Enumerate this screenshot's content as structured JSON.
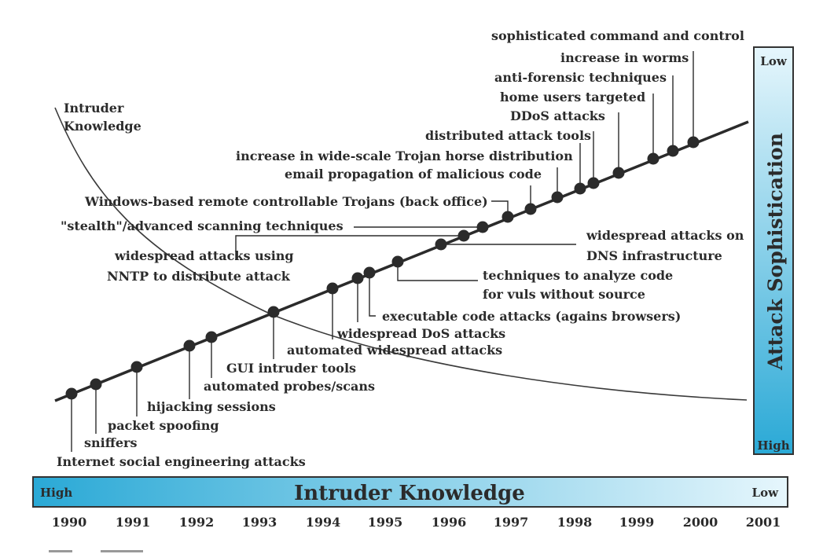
{
  "diagram": {
    "curve_label": "Intruder Knowledge",
    "curve_label_lines": [
      "Intruder",
      "Knowledge"
    ],
    "right_bar": {
      "title": "Attack Sophistication",
      "top": "Low",
      "bottom": "High"
    },
    "bottom_bar": {
      "title": "Intruder Knowledge",
      "left": "High",
      "right": "Low"
    },
    "years": [
      "1990",
      "1991",
      "1992",
      "1993",
      "1994",
      "1995",
      "1996",
      "1997",
      "1998",
      "1999",
      "2000",
      "2001"
    ],
    "events": [
      "Internet social engineering attacks",
      "sniffers",
      "packet spoofing",
      "hijacking sessions",
      "automated probes/scans",
      "GUI intruder tools",
      "automated widespread attacks",
      "widespread DoS attacks",
      "executable code attacks (agains browsers)",
      "techniques to analyze code",
      "for vuls without source",
      "widespread attacks on",
      "DNS infrastructure",
      "widespread attacks using",
      "NNTP to distribute attack",
      "\"stealth\"/advanced scanning techniques",
      "Windows-based remote controllable Trojans (back office)",
      "email propagation of malicious code",
      "increase in wide-scale Trojan horse distribution",
      "distributed attack tools",
      "DDoS attacks",
      "home users targeted",
      "anti-forensic techniques",
      "increase in worms",
      "sophisticated command and control"
    ]
  },
  "colors": {
    "bar_dark": "#2aa9d6",
    "bar_light": "#e6f6fc",
    "ink": "#2b2b2b"
  }
}
